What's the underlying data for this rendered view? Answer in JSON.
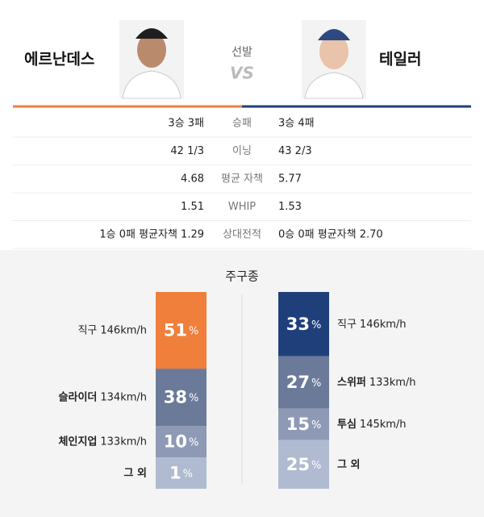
{
  "header": {
    "left_name": "에르난데스",
    "right_name": "테일러",
    "caption": "선발",
    "vs": "VS"
  },
  "stats": [
    {
      "label": "승패",
      "left": "3승 3패",
      "right": "3승 4패"
    },
    {
      "label": "이닝",
      "left": "42 1/3",
      "right": "43 2/3"
    },
    {
      "label": "평균 자책",
      "left": "4.68",
      "right": "5.77"
    },
    {
      "label": "WHIP",
      "left": "1.51",
      "right": "1.53"
    },
    {
      "label": "상대전적",
      "left": "1승 0패 평균자책 1.29",
      "right": "0승 0패 평균자책 2.70"
    }
  ],
  "pitches": {
    "title": "주구종",
    "percent_sign": "%",
    "left": [
      {
        "name": "직구",
        "speed": "146km/h",
        "value": 51,
        "color": "#f07f3c"
      },
      {
        "name": "슬라이더",
        "speed": "134km/h",
        "value": 38,
        "color": "#6b7a99"
      },
      {
        "name": "체인지업",
        "speed": "133km/h",
        "value": 10,
        "color": "#8e9ab5"
      },
      {
        "name": "그 외",
        "value": 1,
        "color": "#b0bad0"
      }
    ],
    "right": [
      {
        "name": "직구",
        "speed": "146km/h",
        "value": 33,
        "color": "#1f3f7a"
      },
      {
        "name": "스위퍼",
        "speed": "133km/h",
        "value": 27,
        "color": "#6b7a99"
      },
      {
        "name": "투심",
        "speed": "145km/h",
        "value": 15,
        "color": "#8e9ab5"
      },
      {
        "name": "그 외",
        "value": 25,
        "color": "#b0bad0"
      }
    ]
  }
}
